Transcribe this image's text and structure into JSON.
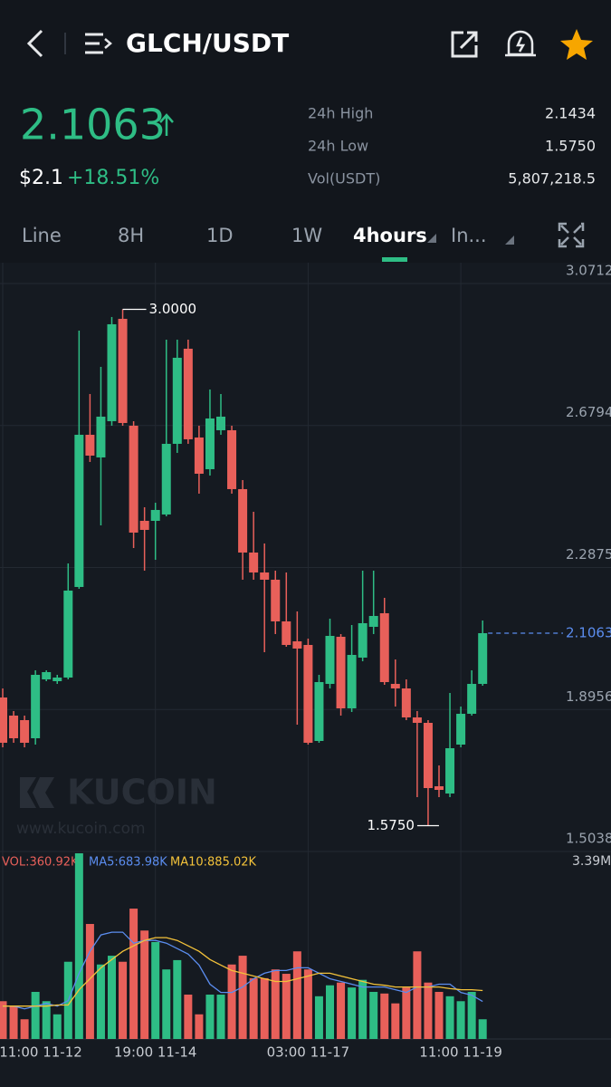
{
  "header": {
    "title": "GLCH/USDT"
  },
  "ticker": {
    "price": "2.1063",
    "fiat_price": "$2.1",
    "change": "+18.51%",
    "stats": [
      {
        "label": "24h High",
        "value": "2.1434"
      },
      {
        "label": "24h Low",
        "value": "1.5750"
      },
      {
        "label": "Vol(USDT)",
        "value": "5,807,218.5"
      }
    ]
  },
  "tabs": {
    "items": [
      "Line",
      "8H",
      "1D",
      "1W",
      "4hours",
      "In..."
    ],
    "active": 4
  },
  "watermark": {
    "brand": "KUCOIN",
    "url": "www.kucoin.com"
  },
  "chart_data": [
    {
      "type": "candlestick",
      "up_color": "#2ebd85",
      "down_color": "#e8605a",
      "categories": [
        "11:00 11-12",
        null,
        null,
        null,
        null,
        null,
        null,
        null,
        null,
        null,
        null,
        null,
        null,
        null,
        "19:00 11-14",
        null,
        null,
        null,
        null,
        null,
        null,
        null,
        null,
        null,
        null,
        null,
        null,
        null,
        "03:00 11-17",
        null,
        null,
        null,
        null,
        null,
        null,
        null,
        null,
        null,
        null,
        null,
        null,
        null,
        "11:00 11-19",
        null,
        null
      ],
      "open": [
        1.9288,
        1.8788,
        1.8663,
        1.8163,
        1.9788,
        1.9738,
        1.9838,
        2.2338,
        2.6538,
        2.5913,
        2.6913,
        2.9738,
        2.6788,
        2.4163,
        2.4163,
        2.4338,
        2.6288,
        2.8913,
        2.6463,
        2.5588,
        2.6663,
        2.6663,
        2.5038,
        2.3288,
        2.2738,
        2.2538,
        2.1388,
        2.0838,
        2.0738,
        1.8088,
        1.9663,
        2.0963,
        1.8988,
        2.0388,
        2.1238,
        2.1613,
        1.9663,
        1.9538,
        1.8738,
        1.8588,
        1.6838,
        1.6638,
        1.7988,
        1.8838,
        1.9663
      ],
      "high": [
        1.9538,
        1.8913,
        1.8788,
        2.0038,
        2.0038,
        1.9913,
        2.2988,
        2.9413,
        2.7663,
        2.8413,
        2.9788,
        3.0,
        2.6913,
        2.4538,
        2.4663,
        2.9163,
        2.9163,
        2.9163,
        2.6788,
        2.7788,
        2.7663,
        2.6788,
        2.5288,
        2.4413,
        2.3538,
        2.2788,
        2.2738,
        2.1663,
        2.0913,
        1.9913,
        2.1463,
        2.1038,
        2.1288,
        2.2788,
        2.2788,
        2.2038,
        2.0338,
        1.9788,
        1.8913,
        1.8663,
        1.7413,
        1.9413,
        1.9038,
        2.0038,
        2.1413
      ],
      "low": [
        1.7913,
        1.8038,
        1.7913,
        1.7988,
        1.9738,
        1.9663,
        1.9788,
        2.2288,
        2.5788,
        2.4038,
        2.6788,
        2.6788,
        2.3413,
        2.2788,
        2.3088,
        2.4288,
        2.6038,
        2.6288,
        2.4913,
        2.5413,
        2.6538,
        2.4913,
        2.2538,
        2.2538,
        2.0538,
        2.1038,
        2.0688,
        1.8538,
        1.7988,
        1.8038,
        1.9538,
        1.8788,
        1.8888,
        2.0288,
        2.1038,
        1.9638,
        1.9038,
        1.8663,
        1.6538,
        1.575,
        1.6538,
        1.6538,
        1.7913,
        1.8788,
        1.9613
      ],
      "close": [
        1.8038,
        1.8163,
        1.8038,
        1.9913,
        1.9988,
        1.9838,
        2.2238,
        2.6538,
        2.5963,
        2.7038,
        2.9588,
        2.6863,
        2.3838,
        2.3913,
        2.4463,
        2.6288,
        2.8663,
        2.6413,
        2.5463,
        2.6988,
        2.7038,
        2.5038,
        2.3288,
        2.2738,
        2.2538,
        2.1388,
        2.0738,
        2.0638,
        1.8038,
        1.9713,
        2.0988,
        1.8988,
        2.0463,
        2.1338,
        2.1538,
        1.9713,
        1.9538,
        1.8738,
        1.8588,
        1.6788,
        1.6738,
        1.7888,
        1.8838,
        1.9663,
        2.1063
      ],
      "ylim": [
        1.5038,
        3.1287
      ],
      "yticks": [
        1.5038,
        1.8956,
        2.2875,
        2.6794,
        3.0712
      ],
      "grid": true,
      "last_price": 2.1063,
      "last_price_color": "#5b8def",
      "annotations": [
        {
          "value": 3.0,
          "label": "3.0000",
          "of": "high"
        },
        {
          "value": 1.575,
          "label": "1.5750",
          "of": "low"
        }
      ]
    },
    {
      "type": "bar",
      "ylim": [
        0,
        3.39
      ],
      "yticks": [
        {
          "value": 3.39,
          "label": "3.39M"
        }
      ],
      "series": [
        {
          "name": "VOL:360.92K",
          "type": "bar",
          "color": "#e8605a",
          "values": [
            0.69,
            0.61,
            0.36,
            0.86,
            0.69,
            0.45,
            1.41,
            3.39,
            2.1,
            1.36,
            1.52,
            1.41,
            2.38,
            1.98,
            1.77,
            1.27,
            1.44,
            0.81,
            0.45,
            0.81,
            0.81,
            1.36,
            1.52,
            1.11,
            1.11,
            1.27,
            1.19,
            1.6,
            1.27,
            0.78,
            0.98,
            1.03,
            0.94,
            1.08,
            0.86,
            0.83,
            0.65,
            0.94,
            1.6,
            1.03,
            0.86,
            0.78,
            0.69,
            0.86,
            0.36
          ]
        },
        {
          "name": "MA5:683.98K",
          "type": "line",
          "color": "#5b8def",
          "values": [
            0.6,
            0.6,
            0.55,
            0.6,
            0.65,
            0.6,
            0.7,
            1.2,
            1.6,
            1.9,
            1.95,
            1.95,
            1.75,
            1.8,
            1.8,
            1.75,
            1.65,
            1.55,
            1.35,
            1.0,
            0.85,
            0.85,
            0.95,
            1.1,
            1.2,
            1.25,
            1.25,
            1.3,
            1.3,
            1.2,
            1.1,
            1.05,
            1.0,
            0.95,
            0.95,
            0.95,
            0.9,
            0.85,
            0.95,
            0.95,
            1.0,
            1.0,
            0.85,
            0.8,
            0.684
          ]
        },
        {
          "name": "MA10:885.02K",
          "type": "line",
          "color": "#f3c23a",
          "values": [
            0.6,
            0.6,
            0.6,
            0.6,
            0.6,
            0.62,
            0.62,
            0.9,
            1.1,
            1.3,
            1.45,
            1.6,
            1.7,
            1.8,
            1.85,
            1.85,
            1.8,
            1.7,
            1.6,
            1.45,
            1.35,
            1.25,
            1.2,
            1.15,
            1.1,
            1.05,
            1.05,
            1.1,
            1.15,
            1.2,
            1.2,
            1.15,
            1.1,
            1.05,
            1.0,
            0.98,
            0.95,
            0.95,
            0.95,
            0.95,
            0.95,
            0.92,
            0.9,
            0.9,
            0.885
          ]
        }
      ]
    }
  ]
}
